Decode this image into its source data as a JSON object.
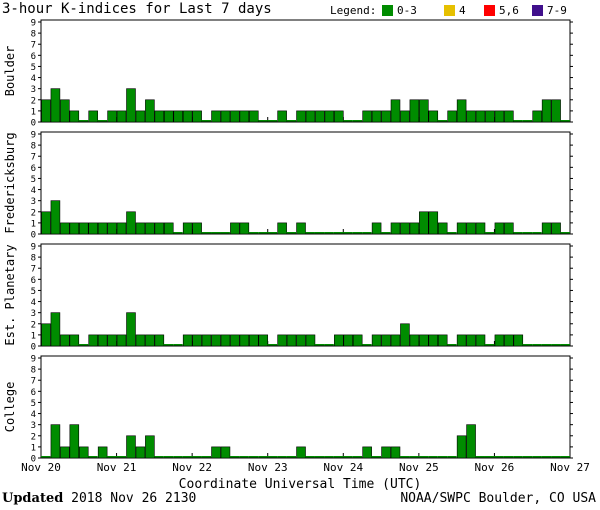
{
  "title": "3-hour K-indices for Last 7 days",
  "legend": {
    "label": "Legend:",
    "items": [
      {
        "label": "0-3",
        "color": "#008c00"
      },
      {
        "label": "4",
        "color": "#e6c000"
      },
      {
        "label": "5,6",
        "color": "#ff0000"
      },
      {
        "label": "7-9",
        "color": "#40108c"
      }
    ]
  },
  "footer": {
    "updated_label": "Updated",
    "updated_value": "2018 Nov 26 2130",
    "source": "NOAA/SWPC Boulder, CO USA"
  },
  "chart_data": {
    "type": "bar",
    "xlabel": "Coordinate Universal Time (UTC)",
    "x_ticks": [
      "Nov 20",
      "Nov 21",
      "Nov 22",
      "Nov 23",
      "Nov 24",
      "Nov 25",
      "Nov 26",
      "Nov 27"
    ],
    "ylim": [
      0,
      9
    ],
    "y_ticks": [
      "0",
      "1",
      "2",
      "3",
      "4",
      "5",
      "6",
      "7",
      "8",
      "9"
    ],
    "grid": false,
    "bar_color": "#008c00",
    "panels": [
      {
        "name": "Boulder",
        "values": [
          2,
          3,
          2,
          1,
          0,
          1,
          0,
          1,
          1,
          3,
          1,
          2,
          1,
          1,
          1,
          1,
          1,
          0,
          1,
          1,
          1,
          1,
          1,
          0,
          0,
          1,
          0,
          1,
          1,
          1,
          1,
          1,
          0,
          0,
          1,
          1,
          1,
          2,
          1,
          2,
          2,
          1,
          0,
          1,
          2,
          1,
          1,
          1,
          1,
          1,
          0,
          0,
          1,
          2,
          2,
          0
        ]
      },
      {
        "name": "Fredericksburg",
        "values": [
          2,
          3,
          1,
          1,
          1,
          1,
          1,
          1,
          1,
          2,
          1,
          1,
          1,
          1,
          0,
          1,
          1,
          0,
          0,
          0,
          1,
          1,
          0,
          0,
          0,
          1,
          0,
          1,
          0,
          0,
          0,
          0,
          0,
          0,
          0,
          1,
          0,
          1,
          1,
          1,
          2,
          2,
          1,
          0,
          1,
          1,
          1,
          0,
          1,
          1,
          0,
          0,
          0,
          1,
          1,
          0
        ]
      },
      {
        "name": "Est. Planetary",
        "values": [
          2,
          3,
          1,
          1,
          0,
          1,
          1,
          1,
          1,
          3,
          1,
          1,
          1,
          0,
          0,
          1,
          1,
          1,
          1,
          1,
          1,
          1,
          1,
          1,
          0,
          1,
          1,
          1,
          1,
          0,
          0,
          1,
          1,
          1,
          0,
          1,
          1,
          1,
          2,
          1,
          1,
          1,
          1,
          0,
          1,
          1,
          1,
          0,
          1,
          1,
          1,
          0,
          0,
          0,
          0,
          0
        ]
      },
      {
        "name": "College",
        "values": [
          0,
          3,
          1,
          3,
          1,
          0,
          1,
          0,
          0,
          2,
          1,
          2,
          0,
          0,
          0,
          0,
          0,
          0,
          1,
          1,
          0,
          0,
          0,
          0,
          0,
          0,
          0,
          1,
          0,
          0,
          0,
          0,
          0,
          0,
          1,
          0,
          1,
          1,
          0,
          0,
          0,
          0,
          0,
          0,
          2,
          3,
          0,
          0,
          0,
          0,
          0,
          0,
          0,
          0,
          0,
          0
        ]
      }
    ]
  }
}
